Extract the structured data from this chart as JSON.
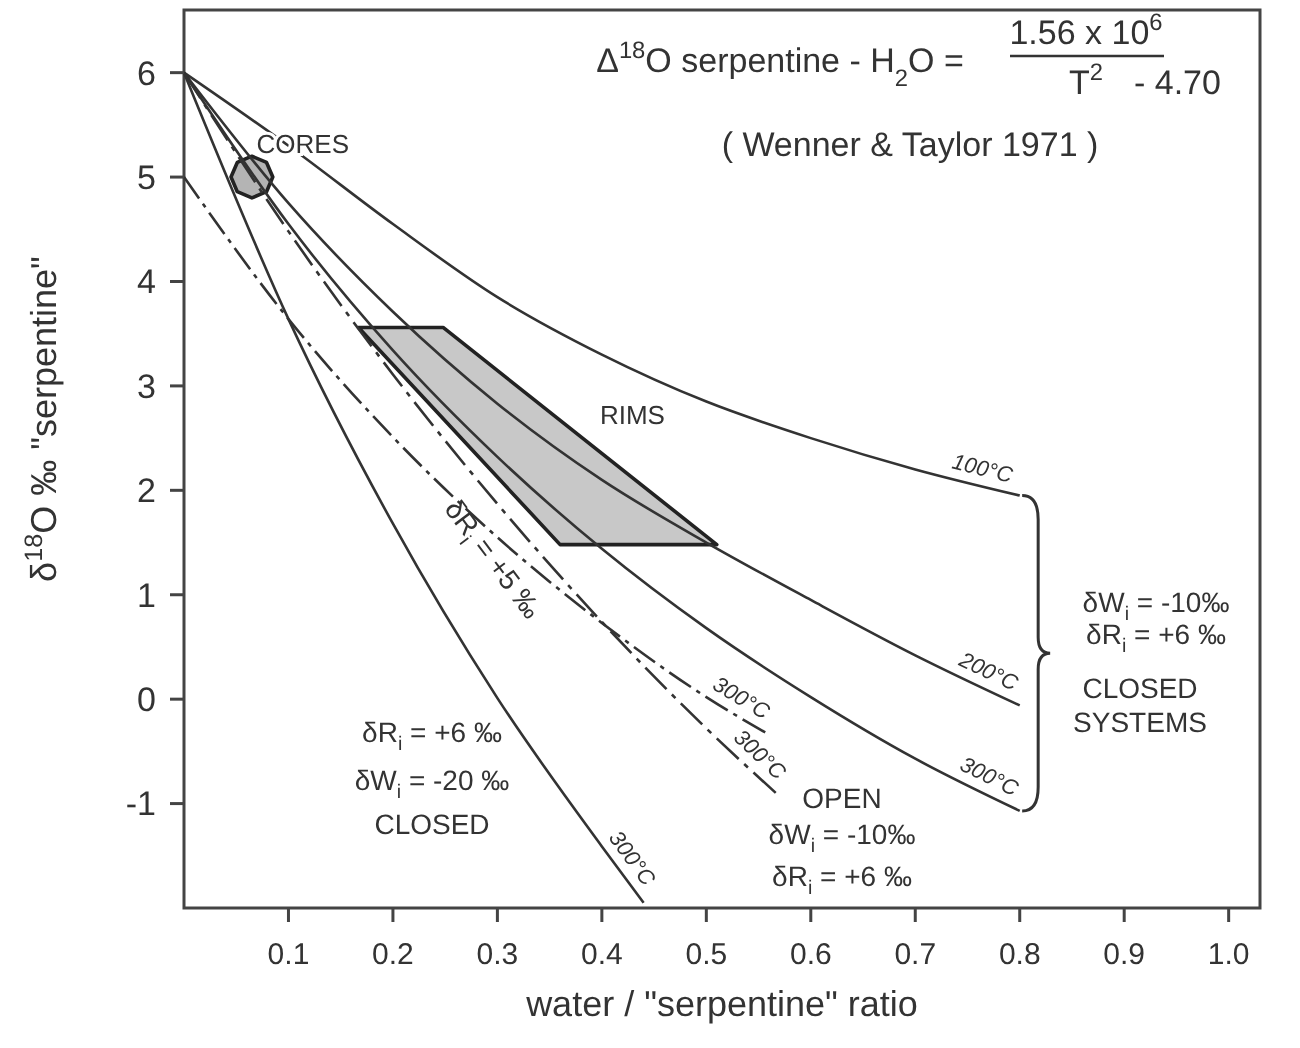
{
  "chart_data": {
    "type": "line",
    "title": "Δ$^{18}$O serpentine - H$_{2}$O =",
    "subtitle": "( Wenner & Taylor 1971 )",
    "xlabel": "water / \"serpentine\" ratio",
    "ylabel": "δ$^{18}$O ‰ \"serpentine\"",
    "xlim": [
      0,
      1.03
    ],
    "ylim": [
      -2,
      6.6
    ],
    "xticks": [
      0.1,
      0.2,
      0.3,
      0.4,
      0.5,
      0.6,
      0.7,
      0.8,
      0.9,
      {
        "value": 1,
        "label": "1.0"
      }
    ],
    "yticks": [
      -1,
      0,
      1,
      2,
      3,
      4,
      5,
      6
    ],
    "grid": false,
    "line_style": "solid",
    "series": [
      {
        "name": "100°C",
        "color": "#333333",
        "x": [
          0,
          0.1,
          0.2,
          0.3,
          0.4,
          0.5,
          0.6,
          0.7,
          0.8
        ],
        "values": [
          6,
          5.3,
          4.55,
          3.85,
          3.3,
          2.85,
          2.5,
          2.2,
          1.95
        ]
      },
      {
        "name": "200°C",
        "color": "#333333",
        "x": [
          0,
          0.1,
          0.2,
          0.3,
          0.4,
          0.5,
          0.6,
          0.7,
          0.8
        ],
        "values": [
          6,
          4.75,
          3.71,
          2.83,
          2.1,
          1.5,
          0.95,
          0.42,
          -0.06
        ]
      },
      {
        "name": "300°C",
        "color": "#333333",
        "x": [
          0,
          0.1,
          0.2,
          0.3,
          0.4,
          0.5,
          0.6,
          0.7,
          0.8
        ],
        "values": [
          6,
          4.55,
          3.34,
          2.32,
          1.44,
          0.68,
          0.02,
          -0.57,
          -1.07
        ]
      },
      {
        "name": "300°C",
        "color": "#333333",
        "line_style": "dashed",
        "x": [
          0,
          0.1,
          0.2,
          0.3,
          0.4,
          0.5,
          0.56
        ],
        "values": [
          5,
          3.64,
          2.51,
          1.55,
          0.73,
          0.02,
          -0.34
        ]
      },
      {
        "name": "300°C",
        "color": "#333333",
        "line_style": "dashed",
        "x": [
          0,
          0.1,
          0.2,
          0.3,
          0.4,
          0.5,
          0.57
        ],
        "values": [
          6,
          4.48,
          3.11,
          1.87,
          0.74,
          -0.28,
          -0.93
        ]
      },
      {
        "name": "300°C",
        "color": "#333333",
        "x": [
          0,
          0.1,
          0.2,
          0.3,
          0.4,
          0.44
        ],
        "values": [
          6,
          3.64,
          1.68,
          0.01,
          -1.41,
          -1.95
        ]
      },
      {
        "name": "RIMS",
        "type": "area",
        "color": "#c8c8c8",
        "x": [
          0.167,
          0.248,
          0.51,
          0.36
        ],
        "values": [
          3.56,
          3.56,
          1.48,
          1.48
        ]
      },
      {
        "name": "CORES",
        "type": "area",
        "color": "#b4b4b4",
        "x": [
          0.045,
          0.051,
          0.065,
          0.079,
          0.085,
          0.079,
          0.065,
          0.051
        ],
        "values": [
          5,
          5.14,
          5.2,
          5.14,
          5,
          4.86,
          4.8,
          4.86
        ]
      }
    ],
    "annotations": [
      "1.56 x 10$^{6}$",
      "T$^{2}$",
      "- 4.70",
      "δR$_{i}$ = +5 ‰",
      "δW$_{i}$ = -10‰",
      "δR$_{i}$ = +6 ‰",
      "CLOSED",
      "SYSTEMS",
      "OPEN",
      "δW$_{i}$ = -10‰",
      "δR$_{i}$ = +6 ‰",
      "δR$_{i}$ = +6 ‰",
      "δW$_{i}$ = -20 ‰",
      "CLOSED"
    ]
  }
}
